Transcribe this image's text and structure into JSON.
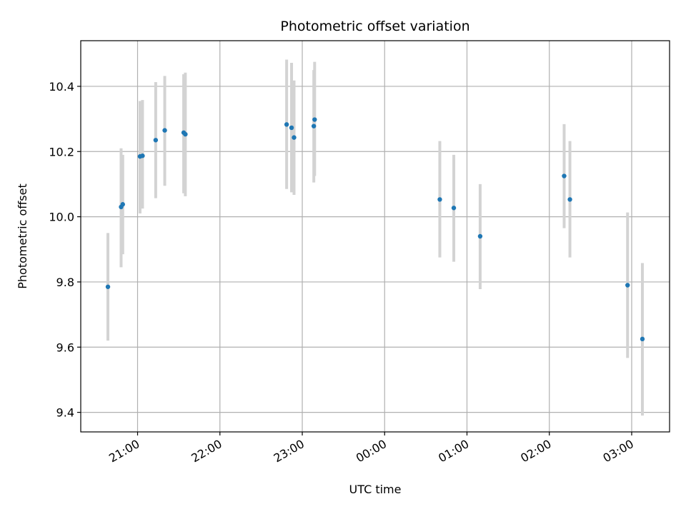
{
  "colors": {
    "point": "#1f77b4",
    "errorbar": "#d3d3d3",
    "grid": "#b0b0b0",
    "axis": "#000000",
    "background": "#ffffff"
  },
  "chart_data": {
    "type": "scatter",
    "title": "Photometric offset variation",
    "xlabel": "UTC time",
    "ylabel": "Photometric offset",
    "grid": true,
    "xlim_hours": [
      20.31,
      27.46
    ],
    "ylim": [
      9.34,
      10.54
    ],
    "x_ticks": [
      {
        "hour": 21,
        "label": "21:00"
      },
      {
        "hour": 22,
        "label": "22:00"
      },
      {
        "hour": 23,
        "label": "23:00"
      },
      {
        "hour": 24,
        "label": "00:00"
      },
      {
        "hour": 25,
        "label": "01:00"
      },
      {
        "hour": 26,
        "label": "02:00"
      },
      {
        "hour": 27,
        "label": "03:00"
      }
    ],
    "y_ticks": [
      {
        "value": 9.4,
        "label": "9.4"
      },
      {
        "value": 9.6,
        "label": "9.6"
      },
      {
        "value": 9.8,
        "label": "9.8"
      },
      {
        "value": 10.0,
        "label": "10.0"
      },
      {
        "value": 10.2,
        "label": "10.2"
      },
      {
        "value": 10.4,
        "label": "10.4"
      }
    ],
    "series": [
      {
        "name": "offset",
        "points": [
          {
            "x": 20.64,
            "y": 9.785,
            "err_low": 9.62,
            "err_high": 9.95
          },
          {
            "x": 20.8,
            "y": 10.03,
            "err_low": 9.845,
            "err_high": 10.21
          },
          {
            "x": 20.82,
            "y": 10.038,
            "err_low": 9.885,
            "err_high": 10.19
          },
          {
            "x": 21.03,
            "y": 10.185,
            "err_low": 10.01,
            "err_high": 10.355
          },
          {
            "x": 21.06,
            "y": 10.187,
            "err_low": 10.025,
            "err_high": 10.358
          },
          {
            "x": 21.22,
            "y": 10.235,
            "err_low": 10.057,
            "err_high": 10.413
          },
          {
            "x": 21.33,
            "y": 10.265,
            "err_low": 10.095,
            "err_high": 10.432
          },
          {
            "x": 21.56,
            "y": 10.258,
            "err_low": 10.072,
            "err_high": 10.437
          },
          {
            "x": 21.58,
            "y": 10.253,
            "err_low": 10.063,
            "err_high": 10.442
          },
          {
            "x": 22.81,
            "y": 10.283,
            "err_low": 10.085,
            "err_high": 10.482
          },
          {
            "x": 22.87,
            "y": 10.273,
            "err_low": 10.075,
            "err_high": 10.472
          },
          {
            "x": 22.9,
            "y": 10.243,
            "err_low": 10.067,
            "err_high": 10.418
          },
          {
            "x": 23.14,
            "y": 10.278,
            "err_low": 10.105,
            "err_high": 10.45
          },
          {
            "x": 23.15,
            "y": 10.298,
            "err_low": 10.125,
            "err_high": 10.475
          },
          {
            "x": 24.67,
            "y": 10.053,
            "err_low": 9.875,
            "err_high": 10.232
          },
          {
            "x": 24.84,
            "y": 10.027,
            "err_low": 9.862,
            "err_high": 10.19
          },
          {
            "x": 25.16,
            "y": 9.94,
            "err_low": 9.778,
            "err_high": 10.1
          },
          {
            "x": 26.18,
            "y": 10.125,
            "err_low": 9.965,
            "err_high": 10.284
          },
          {
            "x": 26.25,
            "y": 10.053,
            "err_low": 9.875,
            "err_high": 10.232
          },
          {
            "x": 26.95,
            "y": 9.79,
            "err_low": 9.567,
            "err_high": 10.013
          },
          {
            "x": 27.13,
            "y": 9.625,
            "err_low": 9.39,
            "err_high": 9.858
          }
        ]
      }
    ]
  }
}
